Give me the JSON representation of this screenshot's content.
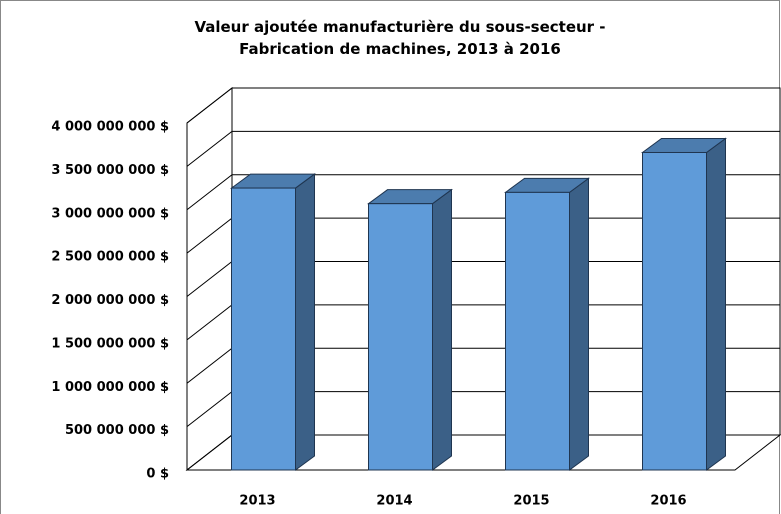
{
  "chart_data": {
    "type": "bar3d",
    "title": "Valeur ajoutée manufacturière du sous-secteur - Fabrication de machines, 2013 à 2016",
    "categories": [
      "2013",
      "2014",
      "2015",
      "2016"
    ],
    "values": [
      3250000000,
      3070000000,
      3200000000,
      3660000000
    ],
    "color": "#5f9bd9",
    "ylim": [
      0,
      4000000000
    ],
    "yticks": [
      {
        "value": 0,
        "label": "0 $"
      },
      {
        "value": 500000000,
        "label": "500 000 000 $"
      },
      {
        "value": 1000000000,
        "label": "1 000 000 000 $"
      },
      {
        "value": 1500000000,
        "label": "1 500 000 000 $"
      },
      {
        "value": 2000000000,
        "label": "2 000 000 000 $"
      },
      {
        "value": 2500000000,
        "label": "2 500 000 000 $"
      },
      {
        "value": 3000000000,
        "label": "3 000 000 000 $"
      },
      {
        "value": 3500000000,
        "label": "3 500 000 000 $"
      },
      {
        "value": 4000000000,
        "label": "4 000 000 000 $"
      }
    ],
    "grid": true
  }
}
